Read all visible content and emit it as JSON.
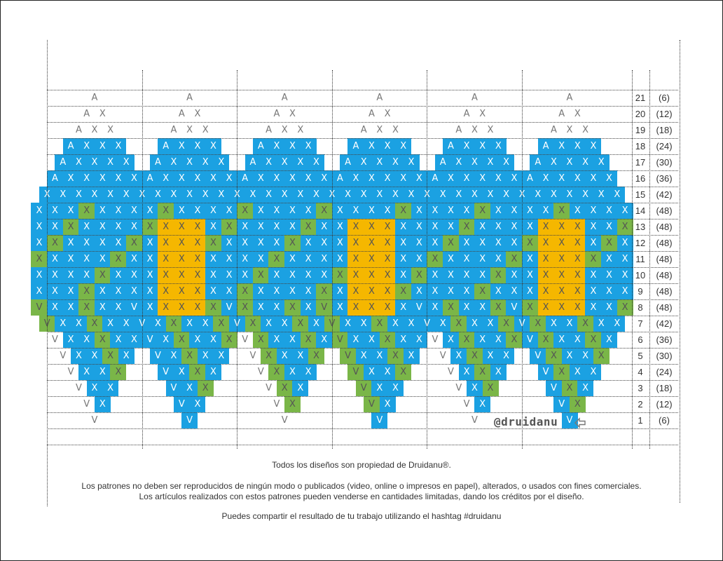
{
  "rows": [
    {
      "num": "21",
      "count": "(6)"
    },
    {
      "num": "20",
      "count": "(12)"
    },
    {
      "num": "19",
      "count": "(18)"
    },
    {
      "num": "18",
      "count": "(24)"
    },
    {
      "num": "17",
      "count": "(30)"
    },
    {
      "num": "16",
      "count": "(36)"
    },
    {
      "num": "15",
      "count": "(42)"
    },
    {
      "num": "14",
      "count": "(48)"
    },
    {
      "num": "13",
      "count": "(48)"
    },
    {
      "num": "12",
      "count": "(48)"
    },
    {
      "num": "11",
      "count": "(48)"
    },
    {
      "num": "10",
      "count": "(48)"
    },
    {
      "num": "9",
      "count": "(48)"
    },
    {
      "num": "8",
      "count": "(48)"
    },
    {
      "num": "7",
      "count": "(42)"
    },
    {
      "num": "6",
      "count": "(36)"
    },
    {
      "num": "5",
      "count": "(30)"
    },
    {
      "num": "4",
      "count": "(24)"
    },
    {
      "num": "3",
      "count": "(18)"
    },
    {
      "num": "2",
      "count": "(12)"
    },
    {
      "num": "1",
      "count": "(6)"
    }
  ],
  "stitch_symbols": {
    "decrease": "A",
    "stitch": "X",
    "increase": "V"
  },
  "colors": {
    "blue": "#1ba1e2",
    "green": "#7ab648",
    "orange": "#f5b700"
  },
  "credit": "@druidanu",
  "start_arrow_icon": "arrow-left-icon",
  "footer": {
    "line1": "Todos los diseños son propiedad de Druidanu®.",
    "line2": "Los patrones no deben ser reproducidos de ningún modo o publicados (video, online o impresos en papel), alterados, o usados con fines comerciales.",
    "line3": "Los artículos realizados con estos patrones pueden venderse en cantidades limitadas, dando los créditos por el diseño.",
    "line4": "Puedes compartir el resultado de tu trabajo utilizando el hashtag #druidanu"
  }
}
